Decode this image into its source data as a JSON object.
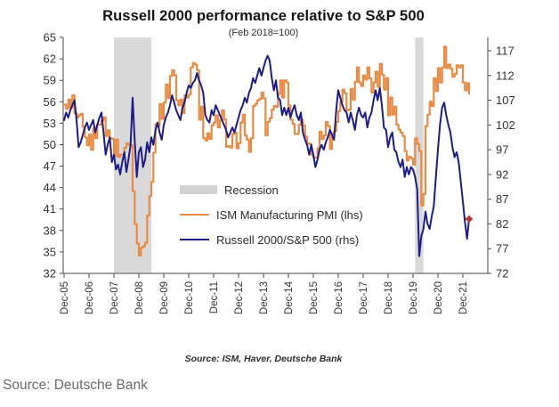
{
  "title": "Russell 2000 performance relative to S&P 500",
  "subtitle": "(Feb 2018=100)",
  "footnote": "Source: ISM, Haver, Deutsche Bank",
  "source_caption": "Source: Deutsche Bank",
  "colors": {
    "ism_line": "#e98b43",
    "russell_line": "#1d1d89",
    "recession_band": "#d9d9d9",
    "marker_red": "#b23b2e",
    "axis": "#4a4a4a",
    "tick_label": "#353535"
  },
  "legend": [
    {
      "kind": "band",
      "label": "Recession",
      "color": "#d2d2d2"
    },
    {
      "kind": "line",
      "label": "ISM Manufacturing PMI (lhs)",
      "color": "#e98b43"
    },
    {
      "kind": "line",
      "label": "Russell 2000/S&P 500 (rhs)",
      "color": "#1d1d89"
    }
  ],
  "chart_data": {
    "type": "line",
    "x_start": "Dec-2005",
    "x_frequency": "monthly",
    "x_tick_labels": [
      "Dec-05",
      "Dec-06",
      "Dec-07",
      "Dec-08",
      "Dec-09",
      "Dec-10",
      "Dec-11",
      "Dec-12",
      "Dec-13",
      "Dec-14",
      "Dec-15",
      "Dec-16",
      "Dec-17",
      "Dec-18",
      "Dec-19",
      "Dec-20",
      "Dec-21"
    ],
    "left_axis": {
      "min": 32,
      "max": 65,
      "ticks": [
        65,
        62,
        59,
        56,
        53,
        50,
        47,
        44,
        41,
        38,
        35,
        32
      ]
    },
    "right_axis": {
      "min": 72,
      "max": 117,
      "ticks": [
        117,
        112,
        107,
        102,
        97,
        92,
        87,
        82,
        77,
        72
      ]
    },
    "recession_bands_month_index": [
      [
        24,
        42
      ],
      [
        169,
        173
      ]
    ],
    "series": [
      {
        "name": "ISM Manufacturing PMI (lhs)",
        "axis": "left",
        "style": "step",
        "color": "#e98b43",
        "values": [
          55.6,
          55.0,
          56.3,
          55.2,
          56.9,
          54.4,
          53.8,
          54.1,
          54.3,
          52.5,
          51.0,
          49.9,
          51.4,
          49.3,
          52.3,
          50.9,
          52.8,
          52.8,
          53.4,
          53.8,
          51.2,
          52.0,
          50.9,
          50.8,
          48.4,
          50.7,
          48.3,
          48.6,
          48.6,
          49.6,
          50.2,
          50.0,
          49.9,
          43.5,
          38.9,
          36.2,
          34.5,
          35.6,
          35.8,
          36.3,
          40.1,
          42.8,
          44.8,
          48.9,
          52.9,
          52.6,
          55.7,
          53.6,
          55.9,
          58.4,
          56.5,
          59.6,
          60.4,
          59.7,
          56.2,
          55.5,
          56.3,
          54.4,
          56.9,
          56.6,
          57.0,
          60.8,
          61.4,
          61.2,
          60.4,
          53.5,
          55.3,
          50.9,
          50.6,
          51.6,
          50.8,
          52.7,
          53.1,
          54.1,
          52.4,
          53.4,
          54.8,
          53.5,
          49.7,
          49.8,
          49.6,
          51.5,
          51.7,
          49.5,
          50.2,
          53.1,
          54.2,
          51.3,
          50.7,
          49.0,
          50.9,
          55.4,
          55.7,
          56.2,
          56.4,
          57.3,
          56.5,
          51.3,
          53.2,
          53.7,
          54.9,
          55.4,
          55.3,
          57.1,
          59.0,
          56.6,
          59.0,
          58.7,
          55.5,
          53.5,
          52.9,
          51.5,
          51.5,
          52.8,
          53.5,
          52.7,
          51.1,
          50.2,
          50.1,
          48.6,
          48.2,
          48.2,
          49.5,
          51.8,
          50.8,
          51.3,
          53.2,
          52.6,
          49.4,
          51.5,
          51.9,
          53.2,
          54.7,
          56.0,
          57.7,
          57.2,
          54.8,
          54.9,
          57.8,
          56.3,
          58.8,
          60.8,
          58.7,
          58.2,
          59.7,
          59.1,
          60.8,
          59.3,
          57.3,
          58.7,
          60.2,
          58.1,
          61.3,
          59.8,
          57.7,
          59.3,
          54.1,
          56.6,
          54.2,
          55.3,
          52.8,
          52.1,
          51.7,
          51.2,
          49.1,
          47.8,
          48.3,
          48.1,
          47.2,
          50.9,
          50.1,
          49.1,
          41.5,
          43.1,
          52.6,
          54.2,
          56.0,
          55.4,
          59.3,
          57.5,
          60.7,
          58.7,
          60.8,
          63.7,
          60.7,
          61.2,
          60.6,
          59.5,
          59.9,
          61.1,
          60.8,
          61.1,
          58.7,
          57.6,
          58.6,
          57.1
        ]
      },
      {
        "name": "Russell 2000/S&P 500 (rhs)",
        "axis": "right",
        "style": "line",
        "color": "#1d1d89",
        "last_point_marker": {
          "shape": "diamond",
          "color": "#b23b2e"
        },
        "values": [
          103.0,
          104.5,
          103.5,
          105.0,
          106.0,
          107.0,
          103.0,
          97.5,
          98.5,
          100.0,
          101.5,
          102.5,
          101.0,
          102.0,
          103.0,
          100.5,
          102.0,
          103.5,
          104.5,
          100.5,
          96.0,
          98.0,
          99.5,
          94.5,
          96.0,
          93.0,
          94.0,
          92.0,
          94.5,
          96.5,
          92.5,
          95.0,
          98.0,
          107.5,
          99.0,
          91.5,
          96.5,
          97.5,
          93.5,
          95.0,
          98.5,
          96.5,
          99.5,
          98.0,
          101.0,
          102.5,
          100.5,
          99.0,
          102.0,
          103.5,
          104.5,
          106.0,
          108.0,
          106.5,
          105.0,
          104.0,
          103.0,
          105.5,
          106.5,
          108.5,
          110.0,
          109.5,
          110.5,
          111.0,
          112.5,
          111.0,
          110.0,
          108.5,
          104.0,
          103.0,
          102.5,
          105.0,
          104.0,
          106.0,
          105.0,
          104.0,
          103.0,
          102.0,
          101.0,
          99.5,
          100.5,
          101.5,
          100.5,
          102.0,
          103.5,
          105.0,
          106.0,
          107.5,
          106.5,
          108.5,
          109.5,
          111.5,
          110.5,
          112.0,
          113.5,
          112.0,
          113.5,
          115.0,
          116.0,
          115.0,
          111.5,
          109.0,
          111.0,
          107.5,
          107.0,
          104.0,
          105.5,
          104.0,
          105.5,
          103.5,
          105.0,
          106.0,
          104.0,
          103.0,
          104.5,
          100.5,
          99.0,
          98.0,
          96.0,
          98.0,
          96.0,
          93.5,
          95.0,
          97.0,
          98.0,
          97.0,
          98.5,
          99.5,
          101.0,
          100.0,
          99.0,
          105.0,
          109.0,
          107.5,
          106.0,
          105.0,
          104.5,
          102.5,
          104.5,
          103.0,
          101.0,
          104.0,
          105.5,
          104.0,
          103.5,
          104.5,
          101.5,
          103.5,
          104.5,
          107.0,
          109.0,
          107.0,
          109.5,
          106.0,
          101.5,
          101.0,
          97.5,
          99.5,
          100.5,
          97.0,
          96.5,
          94.5,
          93.5,
          95.0,
          91.5,
          93.5,
          92.0,
          93.5,
          93.0,
          91.5,
          89.0,
          75.5,
          79.5,
          81.0,
          84.5,
          82.0,
          81.0,
          83.5,
          85.5,
          91.5,
          97.0,
          102.0,
          105.5,
          106.5,
          104.0,
          102.0,
          100.5,
          97.5,
          95.5,
          96.5,
          94.5,
          90.5,
          86.5,
          82.5,
          79.0,
          83.0
        ]
      }
    ]
  }
}
